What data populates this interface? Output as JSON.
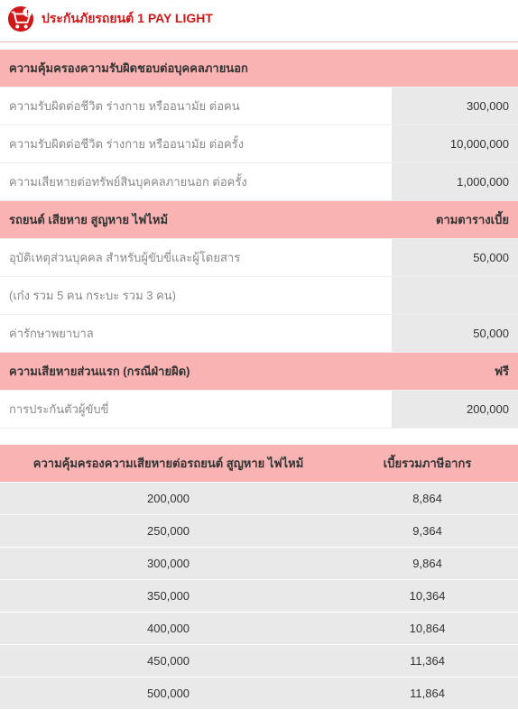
{
  "header": {
    "title": "ประกันภัยรถยนต์ 1 PAY LIGHT",
    "icon_color_outer": "#d01818",
    "icon_color_inner": "#ffffff",
    "icon_color_exclaim": "#d01818",
    "title_color": "#d01818"
  },
  "colors": {
    "section_bg": "#f9b3b3",
    "value_bg": "#e9e9e9",
    "label_text": "#888888",
    "value_text": "#333333",
    "border": "#eeeeee"
  },
  "coverage": {
    "sections": [
      {
        "header_label": "ความคุ้มครองความรับผิดชอบต่อบุคคลภายนอก",
        "header_value": "",
        "rows": [
          {
            "label": "ความรับผิดต่อชีวิต ร่างกาย หรืออนามัย ต่อคน",
            "value": "300,000"
          },
          {
            "label": "ความรับผิดต่อชีวิต ร่างกาย หรืออนามัย ต่อครั้ง",
            "value": "10,000,000"
          },
          {
            "label": "ความเสียหายต่อทรัพย์สินบุคคลภายนอก ต่อครั้ง",
            "value": "1,000,000"
          }
        ]
      },
      {
        "header_label": "รถยนต์ เสียหาย สูญหาย ไฟไหม้",
        "header_value": "ตามตารางเบี้ย",
        "rows": [
          {
            "label": "อุบัติเหตุส่วนบุคคล สำหรับผู้ขับขี่และผู้โดยสาร",
            "value": "50,000"
          },
          {
            "label": "(เก๋ง รวม 5 คน กระบะ รวม 3 คน)",
            "value": ""
          },
          {
            "label": "ค่ารักษาพยาบาล",
            "value": "50,000"
          }
        ]
      },
      {
        "header_label": "ความเสียหายส่วนแรก (กรณีฝ่ายผิด)",
        "header_value": "ฟรี",
        "rows": [
          {
            "label": "การประกันตัวผู้ขับขี่",
            "value": "200,000"
          }
        ]
      }
    ]
  },
  "premium_table": {
    "columns": [
      "ความคุ้มครองความเสียหายต่อรถยนต์ สูญหาย ไฟไหม้",
      "เบี้ยรวมภาษีอากร"
    ],
    "rows": [
      [
        "200,000",
        "8,864"
      ],
      [
        "250,000",
        "9,364"
      ],
      [
        "300,000",
        "9,864"
      ],
      [
        "350,000",
        "10,364"
      ],
      [
        "400,000",
        "10,864"
      ],
      [
        "450,000",
        "11,364"
      ],
      [
        "500,000",
        "11,864"
      ]
    ]
  }
}
